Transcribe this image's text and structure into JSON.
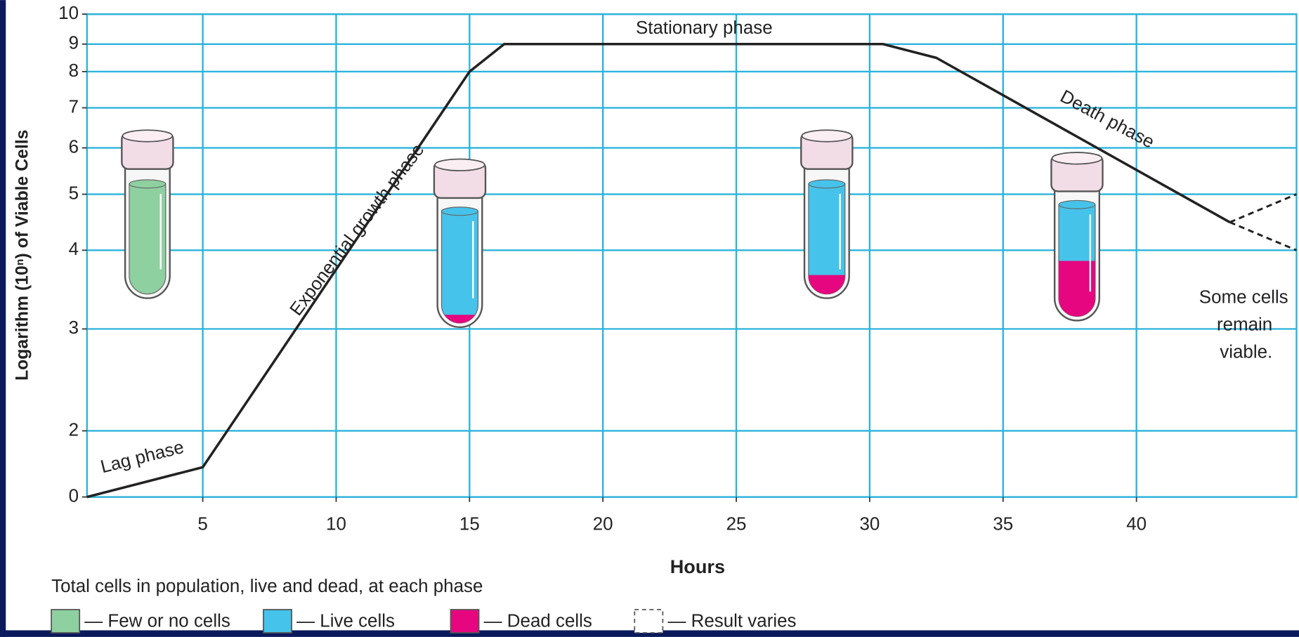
{
  "chart_data": {
    "type": "line",
    "ylabel": "Logarithm (10ⁿ) of Viable Cells",
    "xlabel": "Hours",
    "xlim": [
      0.66,
      46
    ],
    "xticks": [
      5,
      10,
      15,
      20,
      25,
      30,
      35,
      40
    ],
    "ylim": [
      0,
      10
    ],
    "yticks": [
      0,
      2,
      3,
      4,
      5,
      6,
      7,
      8,
      9,
      10
    ],
    "grid": true,
    "series": [
      {
        "color": "#222222",
        "style": "solid",
        "x": [
          0.66,
          5,
          15,
          16.3,
          30.5,
          32.5,
          43.5
        ],
        "values": [
          0,
          0.9,
          8,
          9,
          9,
          8.5,
          4.5
        ]
      },
      {
        "color": "#222222",
        "style": "dashed",
        "x": [
          43.5,
          46
        ],
        "values": [
          4.5,
          5
        ]
      },
      {
        "color": "#222222",
        "style": "dashed",
        "x": [
          43.5,
          46
        ],
        "values": [
          4.5,
          4
        ]
      }
    ],
    "annotations": [
      "Lag phase",
      "Exponential growth phase",
      "Stationary phase",
      "Death phase",
      "Some cells",
      "remain",
      "viable."
    ],
    "legend": {
      "title": "Total cells in population, live and dead, at each phase",
      "items": [
        {
          "label": "— Few or no cells",
          "color": "#8fd0a0"
        },
        {
          "label": "— Live cells",
          "color": "#45c3ea"
        },
        {
          "label": "— Dead cells",
          "color": "#e6067f"
        },
        {
          "label": "— Result varies",
          "style": "dashed"
        }
      ]
    }
  }
}
